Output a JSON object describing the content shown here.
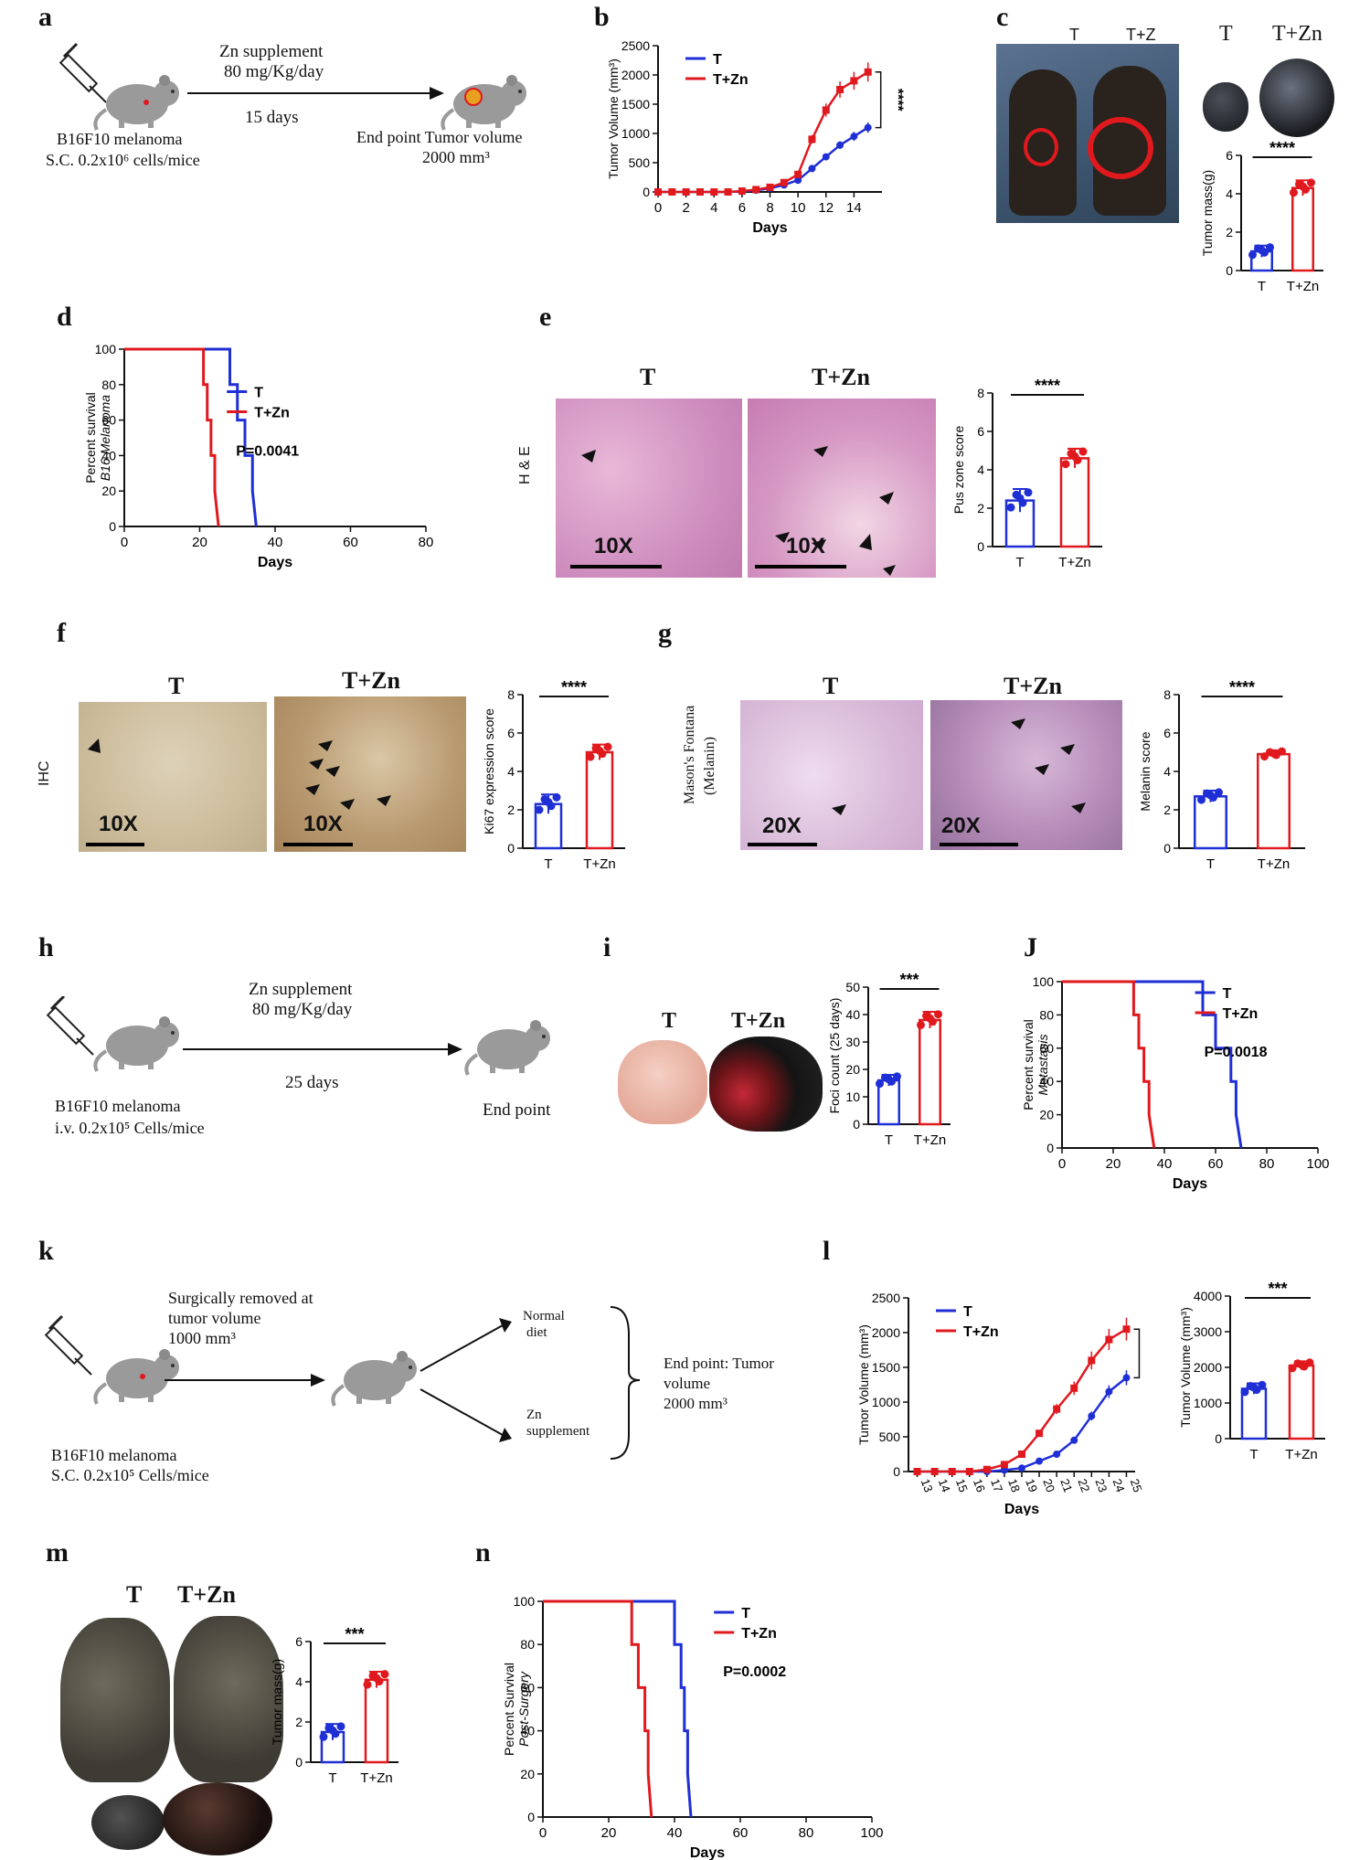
{
  "panels": {
    "a": {
      "label": "a",
      "zn_line1": "Zn supplement",
      "zn_line2": "80 mg/Kg/day",
      "days": "15 days",
      "model_line1": "B16F10 melanoma",
      "model_line2": "S.C. 0.2x10⁶ cells/mice",
      "end_line1": "End point Tumor volume",
      "end_line2": "2000 mm³"
    },
    "b": {
      "label": "b"
    },
    "c": {
      "label": "c",
      "photo_t": "T",
      "photo_tz": "T+Z",
      "tumor_t": "T",
      "tumor_tz": "T+Zn"
    },
    "d": {
      "label": "d"
    },
    "e": {
      "label": "e",
      "col_t": "T",
      "col_tz": "T+Zn",
      "row": "H & E",
      "mag_left": "10X",
      "mag_right": "10X"
    },
    "f": {
      "label": "f",
      "col_t": "T",
      "col_tz": "T+Zn",
      "row": "IHC",
      "mag_left": "10X",
      "mag_right": "10X"
    },
    "g": {
      "label": "g",
      "col_t": "T",
      "col_tz": "T+Zn",
      "row_line1": "Mason's Fontana",
      "row_line2": "(Melanin)",
      "mag_left": "20X",
      "mag_right": "20X"
    },
    "h": {
      "label": "h",
      "zn_line1": "Zn supplement",
      "zn_line2": "80 mg/Kg/day",
      "days": "25 days",
      "model_line1": "B16F10 melanoma",
      "model_line2": "i.v. 0.2x10⁵ Cells/mice",
      "end": "End point"
    },
    "i": {
      "label": "i",
      "photo_t": "T",
      "photo_tz": "T+Zn"
    },
    "j": {
      "label": "J"
    },
    "k": {
      "label": "k",
      "surg_line1": "Surgically removed at",
      "surg_line2": "tumor volume",
      "surg_line3": "1000 mm³",
      "normal_line1": "Normal",
      "normal_line2": "diet",
      "zn_line1": "Zn",
      "zn_line2": "supplement",
      "end_line1": "End point: Tumor",
      "end_line2": "volume",
      "end_line3": "2000 mm³",
      "model_line1": "B16F10 melanoma",
      "model_line2": "S.C. 0.2x10⁵ Cells/mice"
    },
    "l": {
      "label": "l"
    },
    "m": {
      "label": "m",
      "photo_t": "T",
      "photo_tz": "T+Zn"
    },
    "n": {
      "label": "n"
    }
  },
  "colors": {
    "T": "#1f2fd6",
    "TZn": "#e0191e"
  },
  "chart_data": [
    {
      "id": "b",
      "type": "line",
      "ylabel": "Tumor Volume (mm³)",
      "xlabel": "Days",
      "ylim": [
        0,
        2500
      ],
      "yticks": [
        0,
        500,
        1000,
        1500,
        2000,
        2500
      ],
      "xlim": [
        0,
        16
      ],
      "xticks": [
        0,
        2,
        4,
        6,
        8,
        10,
        12,
        14
      ],
      "series": [
        {
          "name": "T",
          "x": [
            0,
            1,
            2,
            3,
            4,
            5,
            6,
            7,
            8,
            9,
            10,
            11,
            12,
            13,
            14,
            15
          ],
          "values": [
            0,
            0,
            0,
            0,
            0,
            0,
            10,
            30,
            60,
            120,
            200,
            400,
            600,
            800,
            950,
            1100
          ]
        },
        {
          "name": "T+Zn",
          "x": [
            0,
            1,
            2,
            3,
            4,
            5,
            6,
            7,
            8,
            9,
            10,
            11,
            12,
            13,
            14,
            15
          ],
          "values": [
            0,
            0,
            0,
            0,
            0,
            0,
            15,
            40,
            80,
            160,
            300,
            900,
            1400,
            1750,
            1900,
            2050
          ]
        }
      ],
      "annotation": "****"
    },
    {
      "id": "c",
      "type": "bar",
      "ylabel": "Tumor mass(g)",
      "ylim": [
        0,
        6
      ],
      "yticks": [
        0,
        2,
        4,
        6
      ],
      "categories": [
        "T",
        "T+Zn"
      ],
      "values": [
        1.0,
        4.3
      ],
      "errors": [
        0.3,
        0.4
      ],
      "annotation": "****"
    },
    {
      "id": "d",
      "type": "line",
      "ylabel": "Percent survival",
      "ylabel2": "B16 Melanoma",
      "xlabel": "Days",
      "xlim": [
        0,
        80
      ],
      "xticks": [
        0,
        20,
        40,
        60,
        80
      ],
      "ylim": [
        0,
        100
      ],
      "yticks": [
        0,
        20,
        40,
        60,
        80,
        100
      ],
      "series": [
        {
          "name": "T",
          "x": [
            0,
            28,
            28,
            30,
            30,
            32,
            32,
            34,
            34,
            35
          ],
          "values": [
            100,
            100,
            80,
            80,
            60,
            60,
            40,
            40,
            20,
            0
          ]
        },
        {
          "name": "T+Zn",
          "x": [
            0,
            21,
            21,
            22,
            22,
            23,
            23,
            24,
            24,
            25
          ],
          "values": [
            100,
            100,
            80,
            80,
            60,
            60,
            40,
            40,
            20,
            0
          ]
        }
      ],
      "annotation": "P=0.0041"
    },
    {
      "id": "e",
      "type": "bar",
      "ylabel": "Pus zone score",
      "ylim": [
        0,
        8
      ],
      "yticks": [
        0,
        2,
        4,
        6,
        8
      ],
      "categories": [
        "T",
        "T+Zn"
      ],
      "values": [
        2.4,
        4.6
      ],
      "errors": [
        0.6,
        0.5
      ],
      "annotation": "****"
    },
    {
      "id": "f",
      "type": "bar",
      "ylabel": "Ki67 expression score",
      "ylim": [
        0,
        8
      ],
      "yticks": [
        0,
        2,
        4,
        6,
        8
      ],
      "categories": [
        "T",
        "T+Zn"
      ],
      "values": [
        2.3,
        5.0
      ],
      "errors": [
        0.5,
        0.4
      ],
      "annotation": "****"
    },
    {
      "id": "g",
      "type": "bar",
      "ylabel": "Melanin score",
      "ylim": [
        0,
        8
      ],
      "yticks": [
        0,
        2,
        4,
        6,
        8
      ],
      "categories": [
        "T",
        "T+Zn"
      ],
      "values": [
        2.7,
        4.9
      ],
      "errors": [
        0.3,
        0.2
      ],
      "annotation": "****"
    },
    {
      "id": "i",
      "type": "bar",
      "ylabel": "Foci count (25 days)",
      "ylim": [
        0,
        50
      ],
      "yticks": [
        0,
        10,
        20,
        30,
        40,
        50
      ],
      "categories": [
        "T",
        "T+Zn"
      ],
      "values": [
        16,
        38
      ],
      "errors": [
        2,
        3
      ],
      "annotation": "***"
    },
    {
      "id": "j",
      "type": "line",
      "ylabel": "Percent survival",
      "ylabel2": "Metastasis",
      "xlabel": "Days",
      "xlim": [
        0,
        100
      ],
      "xticks": [
        0,
        20,
        40,
        60,
        80,
        100
      ],
      "ylim": [
        0,
        100
      ],
      "yticks": [
        0,
        20,
        40,
        60,
        80,
        100
      ],
      "series": [
        {
          "name": "T",
          "x": [
            0,
            55,
            55,
            60,
            60,
            66,
            66,
            68,
            68,
            70
          ],
          "values": [
            100,
            100,
            80,
            80,
            60,
            60,
            40,
            40,
            20,
            0
          ]
        },
        {
          "name": "T+Zn",
          "x": [
            0,
            28,
            28,
            30,
            30,
            32,
            32,
            34,
            34,
            36
          ],
          "values": [
            100,
            100,
            80,
            80,
            60,
            60,
            40,
            40,
            20,
            0
          ]
        }
      ],
      "annotation": "P=0.0018"
    },
    {
      "id": "l1",
      "type": "line",
      "ylabel": "Tumor Volume (mm³)",
      "xlabel": "Days",
      "xlim": [
        12.5,
        25.5
      ],
      "xticks": [
        13,
        14,
        15,
        16,
        17,
        18,
        19,
        20,
        21,
        22,
        23,
        24,
        25
      ],
      "ylim": [
        0,
        2500
      ],
      "yticks": [
        0,
        500,
        1000,
        1500,
        2000,
        2500
      ],
      "series": [
        {
          "name": "T",
          "x": [
            13,
            14,
            15,
            16,
            17,
            18,
            19,
            20,
            21,
            22,
            23,
            24,
            25
          ],
          "values": [
            0,
            0,
            0,
            0,
            0,
            20,
            50,
            150,
            250,
            450,
            800,
            1150,
            1350
          ]
        },
        {
          "name": "T+Zn",
          "x": [
            13,
            14,
            15,
            16,
            17,
            18,
            19,
            20,
            21,
            22,
            23,
            24,
            25
          ],
          "values": [
            0,
            0,
            0,
            0,
            30,
            100,
            250,
            550,
            900,
            1200,
            1600,
            1900,
            2050
          ]
        }
      ],
      "annotation": "***"
    },
    {
      "id": "l2",
      "type": "bar",
      "ylabel": "Tumor Volume (mm³)",
      "ylim": [
        0,
        4000
      ],
      "yticks": [
        0,
        1000,
        2000,
        3000,
        4000
      ],
      "categories": [
        "T",
        "T+Zn"
      ],
      "values": [
        1400,
        2050
      ],
      "errors": [
        150,
        120
      ],
      "annotation": "***"
    },
    {
      "id": "m",
      "type": "bar",
      "ylabel": "Tumor mass(g)",
      "ylim": [
        0,
        6
      ],
      "yticks": [
        0,
        2,
        4,
        6
      ],
      "categories": [
        "T",
        "T+Zn"
      ],
      "values": [
        1.5,
        4.1
      ],
      "errors": [
        0.4,
        0.4
      ],
      "annotation": "***"
    },
    {
      "id": "n",
      "type": "line",
      "ylabel": "Percent Survival",
      "ylabel2": "Post-Surgery",
      "xlabel": "Days",
      "xlim": [
        0,
        100
      ],
      "xticks": [
        0,
        20,
        40,
        60,
        80,
        100
      ],
      "ylim": [
        0,
        100
      ],
      "yticks": [
        0,
        20,
        40,
        60,
        80,
        100
      ],
      "series": [
        {
          "name": "T",
          "x": [
            0,
            40,
            40,
            42,
            42,
            43,
            43,
            44,
            44,
            45
          ],
          "values": [
            100,
            100,
            80,
            80,
            60,
            60,
            40,
            40,
            20,
            0
          ]
        },
        {
          "name": "T+Zn",
          "x": [
            0,
            27,
            27,
            29,
            29,
            31,
            31,
            32,
            32,
            33
          ],
          "values": [
            100,
            100,
            80,
            80,
            60,
            60,
            40,
            40,
            20,
            0
          ]
        }
      ],
      "annotation": "P=0.0002"
    }
  ]
}
